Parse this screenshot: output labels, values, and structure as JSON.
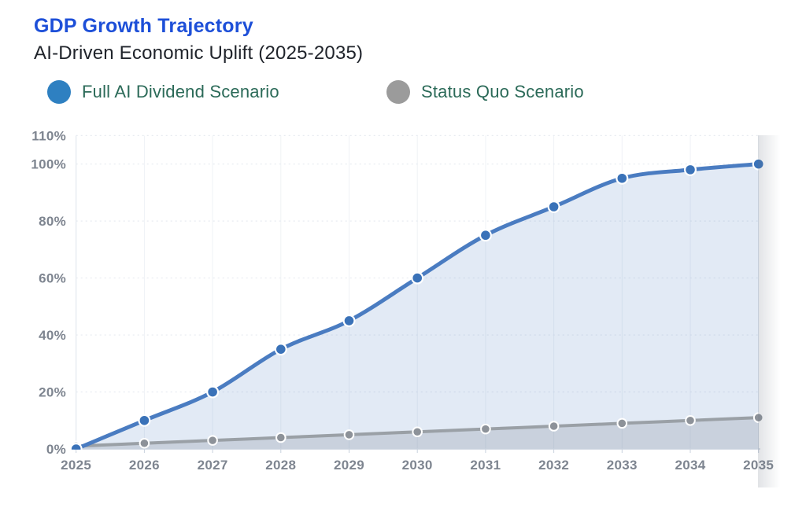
{
  "chart_data": {
    "type": "area",
    "title": "GDP Growth Trajectory",
    "subtitle": "AI-Driven Economic Uplift (2025-2035)",
    "x": [
      2025,
      2026,
      2027,
      2028,
      2029,
      2030,
      2031,
      2032,
      2033,
      2034,
      2035
    ],
    "series": [
      {
        "name": "Full AI Dividend Scenario",
        "values": [
          0,
          10,
          20,
          35,
          45,
          60,
          75,
          85,
          95,
          98,
          100
        ],
        "line_color": "#4a7cc1",
        "point_color": "#3a72b8",
        "fill_color": "rgba(74,124,193,0.16)",
        "legend_color": "#2e80c1"
      },
      {
        "name": "Status Quo Scenario",
        "values": [
          1,
          2,
          3,
          4,
          5,
          6,
          7,
          8,
          9,
          10,
          11
        ],
        "line_color": "#9aa0a6",
        "point_color": "#8d9299",
        "fill_color": "rgba(114,124,138,0.22)",
        "legend_color": "#9b9b9b"
      }
    ],
    "y_ticks": [
      0,
      20,
      40,
      60,
      80,
      100,
      110
    ],
    "y_tick_suffix": "%",
    "ylim": [
      0,
      110
    ],
    "grid": true,
    "legend_position": "top",
    "colors": {
      "title": "#1d4fd8",
      "subtitle": "#20242b",
      "legend_text": "#2b6a58",
      "axis_labels": "#7e8590",
      "gridline": "#e7ebf1",
      "baseline": "#c8d1dd"
    }
  }
}
